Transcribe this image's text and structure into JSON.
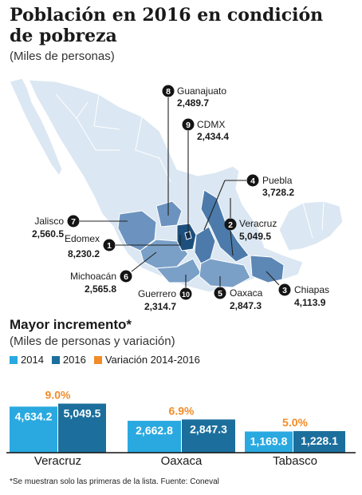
{
  "title": "Población en 2016 en condición de pobreza",
  "subtitle": "(Miles de personas)",
  "colors": {
    "c2014": "#2aa9e0",
    "c2016": "#1c6f9c",
    "variation": "#f28c28",
    "map_base": "#dbe7f2",
    "map_highlight": "#5d87b5"
  },
  "chart_data": [
    {
      "type": "map",
      "unit": "Miles de personas",
      "regions": [
        {
          "rank": "1",
          "name": "Edomex",
          "value": "8,230.2"
        },
        {
          "rank": "2",
          "name": "Veracruz",
          "value": "5,049.5"
        },
        {
          "rank": "3",
          "name": "Chiapas",
          "value": "4,113.9"
        },
        {
          "rank": "4",
          "name": "Puebla",
          "value": "3,728.2"
        },
        {
          "rank": "5",
          "name": "Oaxaca",
          "value": "2,847.3"
        },
        {
          "rank": "6",
          "name": "Michoacán",
          "value": "2,565.8"
        },
        {
          "rank": "7",
          "name": "Jalisco",
          "value": "2,560.5"
        },
        {
          "rank": "8",
          "name": "Guanajuato",
          "value": "2,489.7"
        },
        {
          "rank": "9",
          "name": "CDMX",
          "value": "2,434.4"
        },
        {
          "rank": "10",
          "name": "Guerrero",
          "value": "2,314.7"
        }
      ]
    },
    {
      "type": "bar",
      "title": "Mayor incremento*",
      "subtitle": "(Miles de personas y variación)",
      "legend": [
        "2014",
        "2016",
        "Variación 2014-2016"
      ],
      "categories": [
        "Veracruz",
        "Oaxaca",
        "Tabasco"
      ],
      "series": [
        {
          "name": "2014",
          "values": [
            4634.2,
            2662.8,
            1169.8
          ],
          "labels": [
            "4,634.2",
            "2,662.8",
            "1,169.8"
          ]
        },
        {
          "name": "2016",
          "values": [
            5049.5,
            2847.3,
            1228.1
          ],
          "labels": [
            "5,049.5",
            "2,847.3",
            "1,228.1"
          ]
        }
      ],
      "variation": [
        "9.0%",
        "6.9%",
        "5.0%"
      ]
    }
  ],
  "footnote": "*Se muestran solo las primeras de la lista.  Fuente: Coneval"
}
